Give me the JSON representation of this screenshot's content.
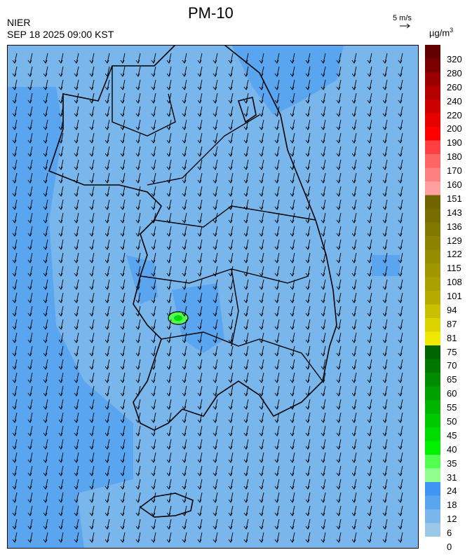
{
  "header": {
    "title": "PM-10",
    "agency": "NIER",
    "datetime": "SEP 18 2025 09:00 KST",
    "wind_ref_label": "5 m/s",
    "unit_base": "µg/m",
    "unit_exp": "3"
  },
  "legend": {
    "ticks": [
      "320",
      "280",
      "260",
      "240",
      "220",
      "200",
      "190",
      "180",
      "170",
      "160",
      "151",
      "143",
      "136",
      "129",
      "122",
      "115",
      "108",
      "101",
      "94",
      "87",
      "81",
      "75",
      "70",
      "65",
      "60",
      "55",
      "50",
      "45",
      "40",
      "35",
      "31",
      "24",
      "18",
      "12",
      "6",
      "0"
    ],
    "colors": [
      "#600000",
      "#7a0000",
      "#990000",
      "#b30000",
      "#cc0000",
      "#e60000",
      "#ff0000",
      "#ff4040",
      "#ff6464",
      "#ff8080",
      "#ffa0a0",
      "#6e6400",
      "#786e00",
      "#827800",
      "#8c8200",
      "#968c00",
      "#a09600",
      "#aaa000",
      "#b4aa00",
      "#c8c000",
      "#dcd400",
      "#f0e800",
      "#006400",
      "#007800",
      "#008c00",
      "#00a000",
      "#00b400",
      "#00c800",
      "#00dc00",
      "#00f000",
      "#50ff50",
      "#90ff90",
      "#3e95f2",
      "#5aa5ef",
      "#79b6ec",
      "#9ac8e6"
    ]
  },
  "map": {
    "background_color": "#79b6ec",
    "high_color": "#5aa5ef",
    "wind_direction": "south-southwest"
  }
}
